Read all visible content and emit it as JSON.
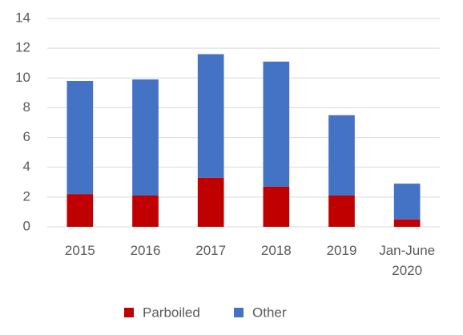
{
  "chart_data": {
    "type": "stacked_bar",
    "categories": [
      "2015",
      "2016",
      "2017",
      "2018",
      "2019",
      "Jan-June 2020"
    ],
    "series": [
      {
        "name": "Parboiled",
        "color": "#c00000",
        "values": [
          2.2,
          2.1,
          3.3,
          2.7,
          2.1,
          0.5
        ]
      },
      {
        "name": "Other",
        "color": "#4472c4",
        "values": [
          7.6,
          7.8,
          8.3,
          8.4,
          5.4,
          2.4
        ]
      }
    ],
    "ylim": [
      0,
      14
    ],
    "yticks": [
      0,
      2,
      4,
      6,
      8,
      10,
      12,
      14
    ],
    "grid": true,
    "legend": "bottom"
  }
}
